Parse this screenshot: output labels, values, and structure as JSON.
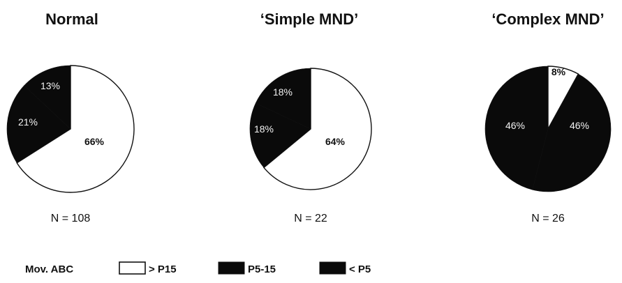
{
  "chart_data": [
    {
      "type": "pie",
      "title": "Normal",
      "n_label": "N = 108",
      "slices": [
        {
          "label": "> P15",
          "value": 66,
          "text": "66%"
        },
        {
          "label": "P5-15",
          "value": 21,
          "text": "21%"
        },
        {
          "label": "< P5",
          "value": 13,
          "text": "13%"
        }
      ]
    },
    {
      "type": "pie",
      "title": "‘Simple MND’",
      "n_label": "N = 22",
      "slices": [
        {
          "label": "> P15",
          "value": 64,
          "text": "64%"
        },
        {
          "label": "P5-15",
          "value": 18,
          "text": "18%"
        },
        {
          "label": "< P5",
          "value": 18,
          "text": "18%"
        }
      ]
    },
    {
      "type": "pie",
      "title": "‘Complex MND’",
      "n_label": "N = 26",
      "slices": [
        {
          "label": "> P15",
          "value": 8,
          "text": "8%"
        },
        {
          "label": "P5-15",
          "value": 46,
          "text": "46%"
        },
        {
          "label": "< P5",
          "value": 46,
          "text": "46%"
        }
      ]
    }
  ],
  "legend": {
    "title": "Mov. ABC",
    "items": [
      {
        "label": "> P15",
        "color": "#ffffff"
      },
      {
        "label": "P5-15",
        "color": "#0a0a0a"
      },
      {
        "label": "< P5",
        "color": "#0a0a0a"
      }
    ]
  },
  "colors": {
    "> P15": "#ffffff",
    "P5-15": "#0a0a0a",
    "< P5": "#0a0a0a",
    "outline": "#111111"
  }
}
